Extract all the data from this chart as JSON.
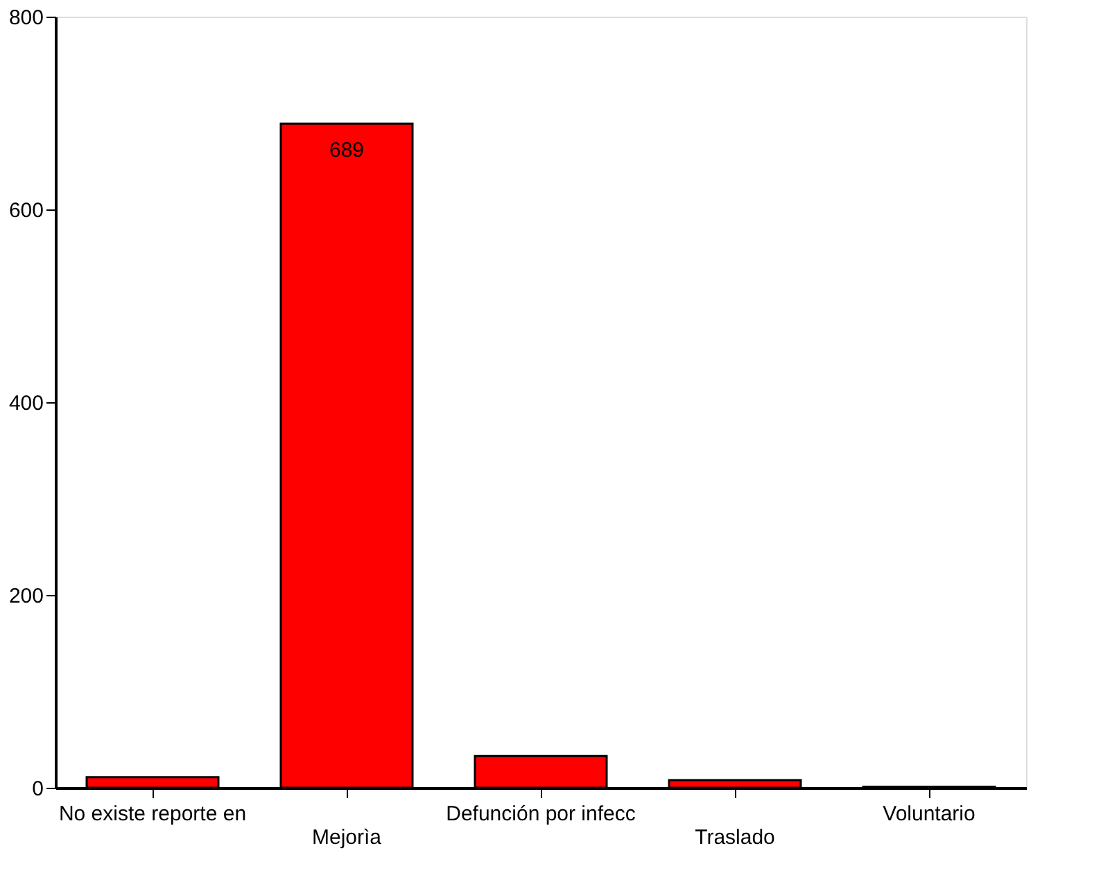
{
  "chart_data": {
    "type": "bar",
    "categories": [
      "No existe reporte en",
      "Mejorìa",
      "Defunción por infecc",
      "Traslado",
      "Voluntario"
    ],
    "values": [
      11,
      689,
      33,
      8,
      1
    ],
    "color": "#ff0000",
    "ylim": [
      0,
      800
    ],
    "yticks": [
      0,
      200,
      400,
      600,
      800
    ],
    "grid": false,
    "value_labels": [
      null,
      "689",
      null,
      null,
      null
    ]
  }
}
